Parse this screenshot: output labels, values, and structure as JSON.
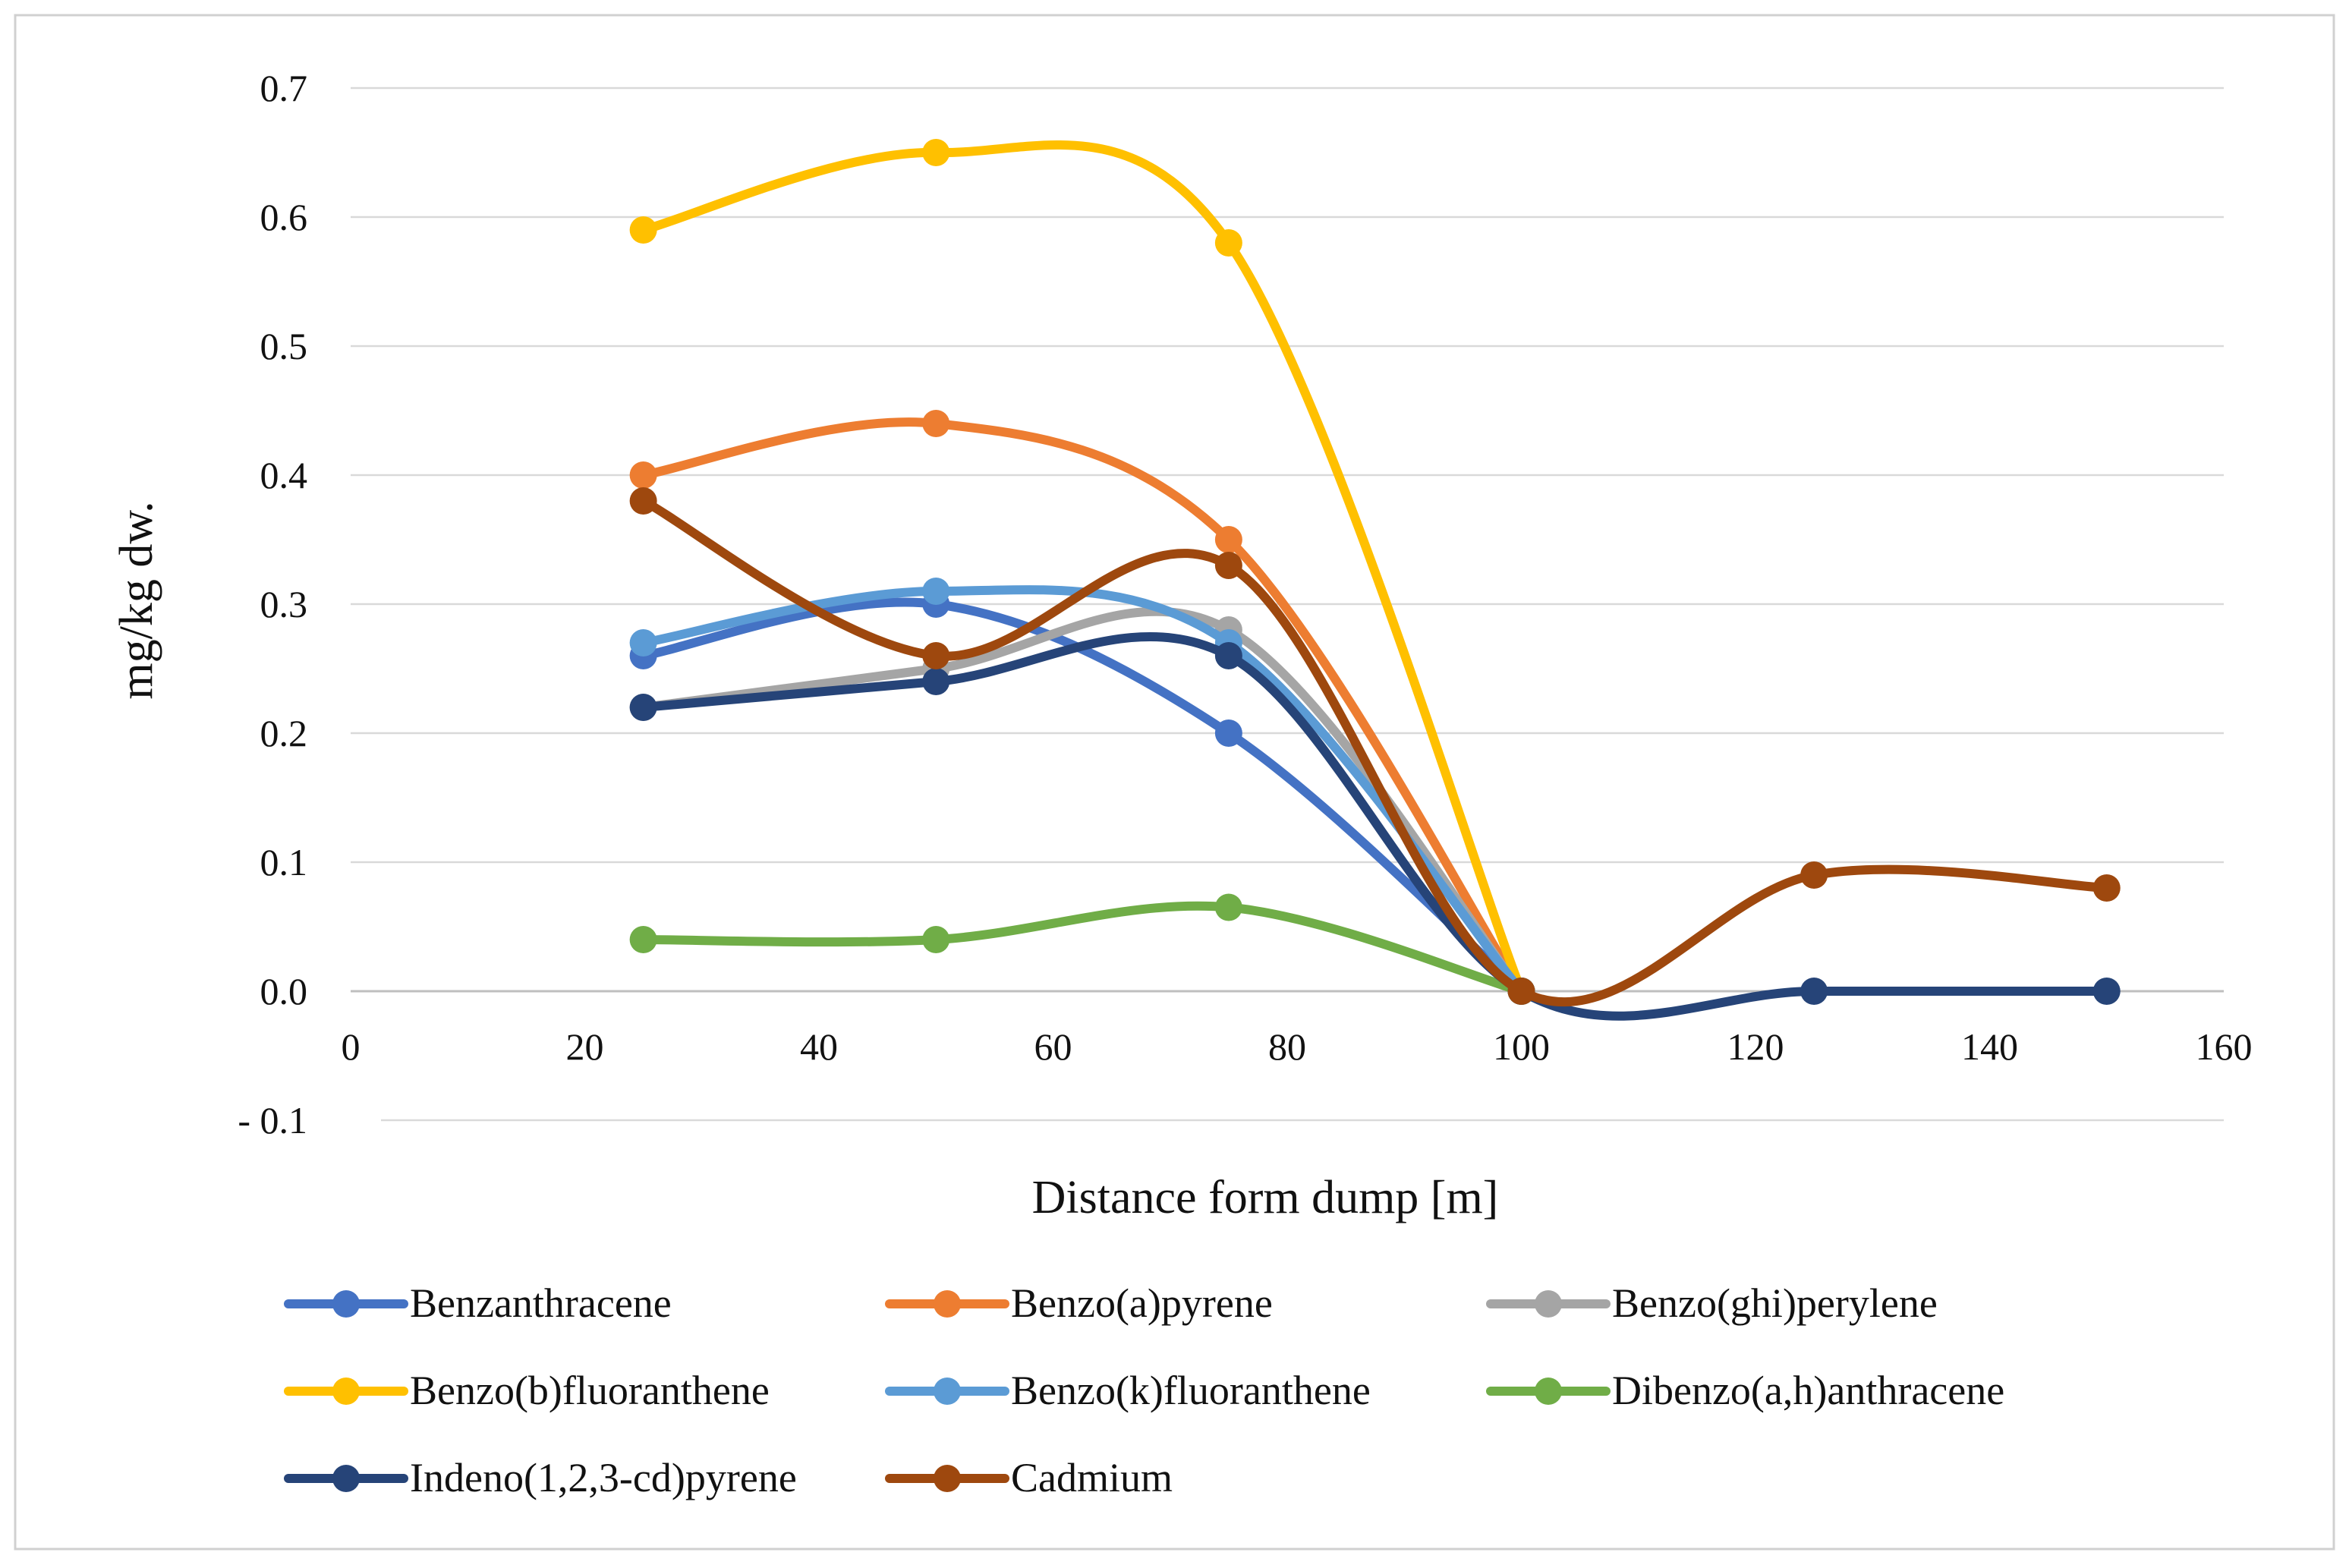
{
  "chart_data": {
    "type": "line",
    "smooth": true,
    "title": "",
    "xlabel": "Distance form dump [m]",
    "ylabel": "mg/kg dw.",
    "xlim": [
      0,
      160
    ],
    "ylim": [
      -0.1,
      0.7
    ],
    "x_ticks": [
      0,
      20,
      40,
      60,
      80,
      100,
      120,
      140,
      160
    ],
    "x_tick_labels": [
      "0",
      "20",
      "40",
      "60",
      "80",
      "100",
      "120",
      "140",
      "160"
    ],
    "y_ticks": [
      -0.1,
      0.0,
      0.1,
      0.2,
      0.3,
      0.4,
      0.5,
      0.6,
      0.7
    ],
    "y_tick_labels": [
      "- 0.1",
      "0.0",
      "0.1",
      "0.2",
      "0.3",
      "0.4",
      "0.5",
      "0.6",
      "0.7"
    ],
    "grid": true,
    "legend_position": "bottom",
    "series": [
      {
        "name": "Benzanthracene",
        "color": "#4472C4",
        "x": [
          25,
          50,
          75,
          100
        ],
        "y": [
          0.26,
          0.3,
          0.2,
          0.0
        ]
      },
      {
        "name": "Benzo(a)pyrene",
        "color": "#ED7D31",
        "x": [
          25,
          50,
          75,
          100
        ],
        "y": [
          0.4,
          0.44,
          0.35,
          0.0
        ]
      },
      {
        "name": "Benzo(ghi)perylene",
        "color": "#A5A5A5",
        "x": [
          25,
          50,
          75,
          100
        ],
        "y": [
          0.22,
          0.25,
          0.28,
          0.0
        ]
      },
      {
        "name": "Benzo(b)fluoranthene",
        "color": "#FFC000",
        "x": [
          25,
          50,
          75,
          100
        ],
        "y": [
          0.59,
          0.65,
          0.58,
          0.0
        ]
      },
      {
        "name": "Benzo(k)fluoranthene",
        "color": "#5B9BD5",
        "x": [
          25,
          50,
          75,
          100
        ],
        "y": [
          0.27,
          0.31,
          0.27,
          0.0
        ]
      },
      {
        "name": "Dibenzo(a,h)anthracene",
        "color": "#70AD47",
        "x": [
          25,
          50,
          75,
          100
        ],
        "y": [
          0.04,
          0.04,
          0.065,
          0.0
        ]
      },
      {
        "name": "Indeno(1,2,3-cd)pyrene",
        "color": "#264478",
        "x": [
          25,
          50,
          75,
          100,
          125,
          150
        ],
        "y": [
          0.22,
          0.24,
          0.26,
          0.0,
          0.0,
          0.0
        ]
      },
      {
        "name": "Cadmium",
        "color": "#9E480E",
        "x": [
          25,
          50,
          75,
          100,
          125,
          150
        ],
        "y": [
          0.38,
          0.26,
          0.33,
          0.0,
          0.09,
          0.08
        ]
      }
    ]
  }
}
